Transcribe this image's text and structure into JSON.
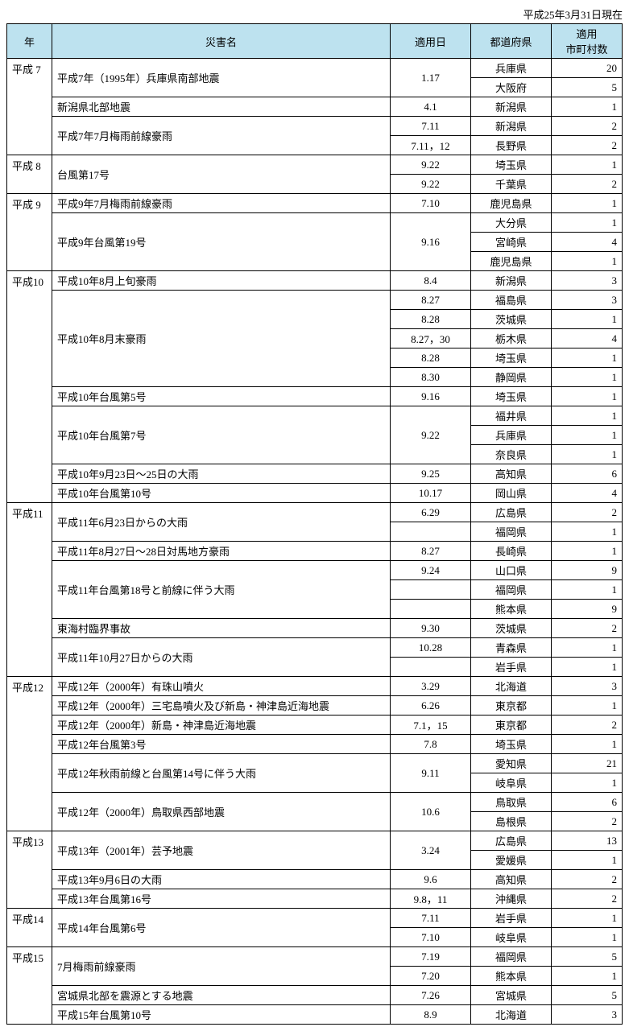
{
  "as_of": "平成25年3月31日現在",
  "columns": {
    "year": "年",
    "name": "災害名",
    "date": "適用日",
    "pref": "都道府県",
    "count": "適用\n市町村数"
  },
  "rows": [
    {
      "year": "平成 7",
      "year_rowspan": 5,
      "name": "平成7年（1995年）兵庫県南部地震",
      "name_rowspan": 2,
      "date": "1.17",
      "date_rowspan": 2,
      "pref": "兵庫県",
      "count": "20"
    },
    {
      "pref": "大阪府",
      "count": "5"
    },
    {
      "name": "新潟県北部地震",
      "date": "4.1",
      "pref": "新潟県",
      "count": "1"
    },
    {
      "name": "平成7年7月梅雨前線豪雨",
      "name_rowspan": 2,
      "date": "7.11",
      "pref": "新潟県",
      "count": "2"
    },
    {
      "date": "7.11，12",
      "pref": "長野県",
      "count": "2"
    },
    {
      "year": "平成 8",
      "year_rowspan": 2,
      "name": "台風第17号",
      "name_rowspan": 2,
      "date": "9.22",
      "pref": "埼玉県",
      "count": "1"
    },
    {
      "date": "9.22",
      "pref": "千葉県",
      "count": "2"
    },
    {
      "year": "平成 9",
      "year_rowspan": 4,
      "name": "平成9年7月梅雨前線豪雨",
      "date": "7.10",
      "pref": "鹿児島県",
      "count": "1"
    },
    {
      "name": "平成9年台風第19号",
      "name_rowspan": 3,
      "date": "9.16",
      "date_rowspan": 3,
      "pref": "大分県",
      "count": "1"
    },
    {
      "pref": "宮崎県",
      "count": "4"
    },
    {
      "pref": "鹿児島県",
      "count": "1"
    },
    {
      "year": "平成10",
      "year_rowspan": 12,
      "name": "平成10年8月上旬豪雨",
      "date": "8.4",
      "pref": "新潟県",
      "count": "3"
    },
    {
      "name": "平成10年8月末豪雨",
      "name_rowspan": 5,
      "date": "8.27",
      "pref": "福島県",
      "count": "3"
    },
    {
      "date": "8.28",
      "pref": "茨城県",
      "count": "1"
    },
    {
      "date": "8.27，30",
      "pref": "栃木県",
      "count": "4"
    },
    {
      "date": "8.28",
      "pref": "埼玉県",
      "count": "1"
    },
    {
      "date": "8.30",
      "pref": "静岡県",
      "count": "1"
    },
    {
      "name": "平成10年台風第5号",
      "date": "9.16",
      "pref": "埼玉県",
      "count": "1"
    },
    {
      "name": "平成10年台風第7号",
      "name_rowspan": 3,
      "date": "9.22",
      "date_rowspan": 3,
      "pref": "福井県",
      "count": "1"
    },
    {
      "pref": "兵庫県",
      "count": "1"
    },
    {
      "pref": "奈良県",
      "count": "1"
    },
    {
      "name": "平成10年9月23日～25日の大雨",
      "date": "9.25",
      "pref": "高知県",
      "count": "6"
    },
    {
      "name": "平成10年台風第10号",
      "date": "10.17",
      "pref": "岡山県",
      "count": "4"
    },
    {
      "year": "平成11",
      "year_rowspan": 9,
      "name": "平成11年6月23日からの大雨",
      "name_rowspan": 2,
      "date": "6.29",
      "pref": "広島県",
      "count": "2"
    },
    {
      "date": "",
      "pref": "福岡県",
      "count": "1"
    },
    {
      "name": "平成11年8月27日～28日対馬地方豪雨",
      "date": "8.27",
      "pref": "長崎県",
      "count": "1"
    },
    {
      "name": "平成11年台風第18号と前線に伴う大雨",
      "name_rowspan": 3,
      "date": "9.24",
      "pref": "山口県",
      "count": "9"
    },
    {
      "date": "",
      "pref": "福岡県",
      "count": "1"
    },
    {
      "date": "",
      "pref": "熊本県",
      "count": "9"
    },
    {
      "name": "東海村臨界事故",
      "date": "9.30",
      "pref": "茨城県",
      "count": "2"
    },
    {
      "name": "平成11年10月27日からの大雨",
      "name_rowspan": 2,
      "date": "10.28",
      "pref": "青森県",
      "count": "1"
    },
    {
      "date": "",
      "pref": "岩手県",
      "count": "1"
    },
    {
      "year": "平成12",
      "year_rowspan": 8,
      "name": "平成12年（2000年）有珠山噴火",
      "date": "3.29",
      "pref": "北海道",
      "count": "3"
    },
    {
      "name": "平成12年（2000年）三宅島噴火及び新島・神津島近海地震",
      "date": "6.26",
      "pref": "東京都",
      "count": "1"
    },
    {
      "name": "平成12年（2000年）新島・神津島近海地震",
      "date": "7.1，15",
      "pref": "東京都",
      "count": "2"
    },
    {
      "name": "平成12年台風第3号",
      "date": "7.8",
      "pref": "埼玉県",
      "count": "1"
    },
    {
      "name": "平成12年秋雨前線と台風第14号に伴う大雨",
      "name_rowspan": 2,
      "date": "9.11",
      "date_rowspan": 2,
      "pref": "愛知県",
      "count": "21"
    },
    {
      "pref": "岐阜県",
      "count": "1"
    },
    {
      "name": "平成12年（2000年）鳥取県西部地震",
      "name_rowspan": 2,
      "date": "10.6",
      "date_rowspan": 2,
      "pref": "鳥取県",
      "count": "6"
    },
    {
      "pref": "島根県",
      "count": "2"
    },
    {
      "year": "平成13",
      "year_rowspan": 4,
      "name": "平成13年（2001年）芸予地震",
      "name_rowspan": 2,
      "date": "3.24",
      "date_rowspan": 2,
      "pref": "広島県",
      "count": "13"
    },
    {
      "pref": "愛媛県",
      "count": "1"
    },
    {
      "name": "平成13年9月6日の大雨",
      "date": "9.6",
      "pref": "高知県",
      "count": "2"
    },
    {
      "name": "平成13年台風第16号",
      "date": "9.8，11",
      "pref": "沖縄県",
      "count": "2"
    },
    {
      "year": "平成14",
      "year_rowspan": 2,
      "name": "平成14年台風第6号",
      "name_rowspan": 2,
      "date": "7.11",
      "pref": "岩手県",
      "count": "1"
    },
    {
      "date": "7.10",
      "pref": "岐阜県",
      "count": "1"
    },
    {
      "year": "平成15",
      "year_rowspan": 4,
      "name": "7月梅雨前線豪雨",
      "name_rowspan": 2,
      "date": "7.19",
      "pref": "福岡県",
      "count": "5"
    },
    {
      "date": "7.20",
      "pref": "熊本県",
      "count": "1"
    },
    {
      "name": "宮城県北部を震源とする地震",
      "date": "7.26",
      "pref": "宮城県",
      "count": "5"
    },
    {
      "name": "平成15年台風第10号",
      "date": "8.9",
      "pref": "北海道",
      "count": "3"
    }
  ]
}
